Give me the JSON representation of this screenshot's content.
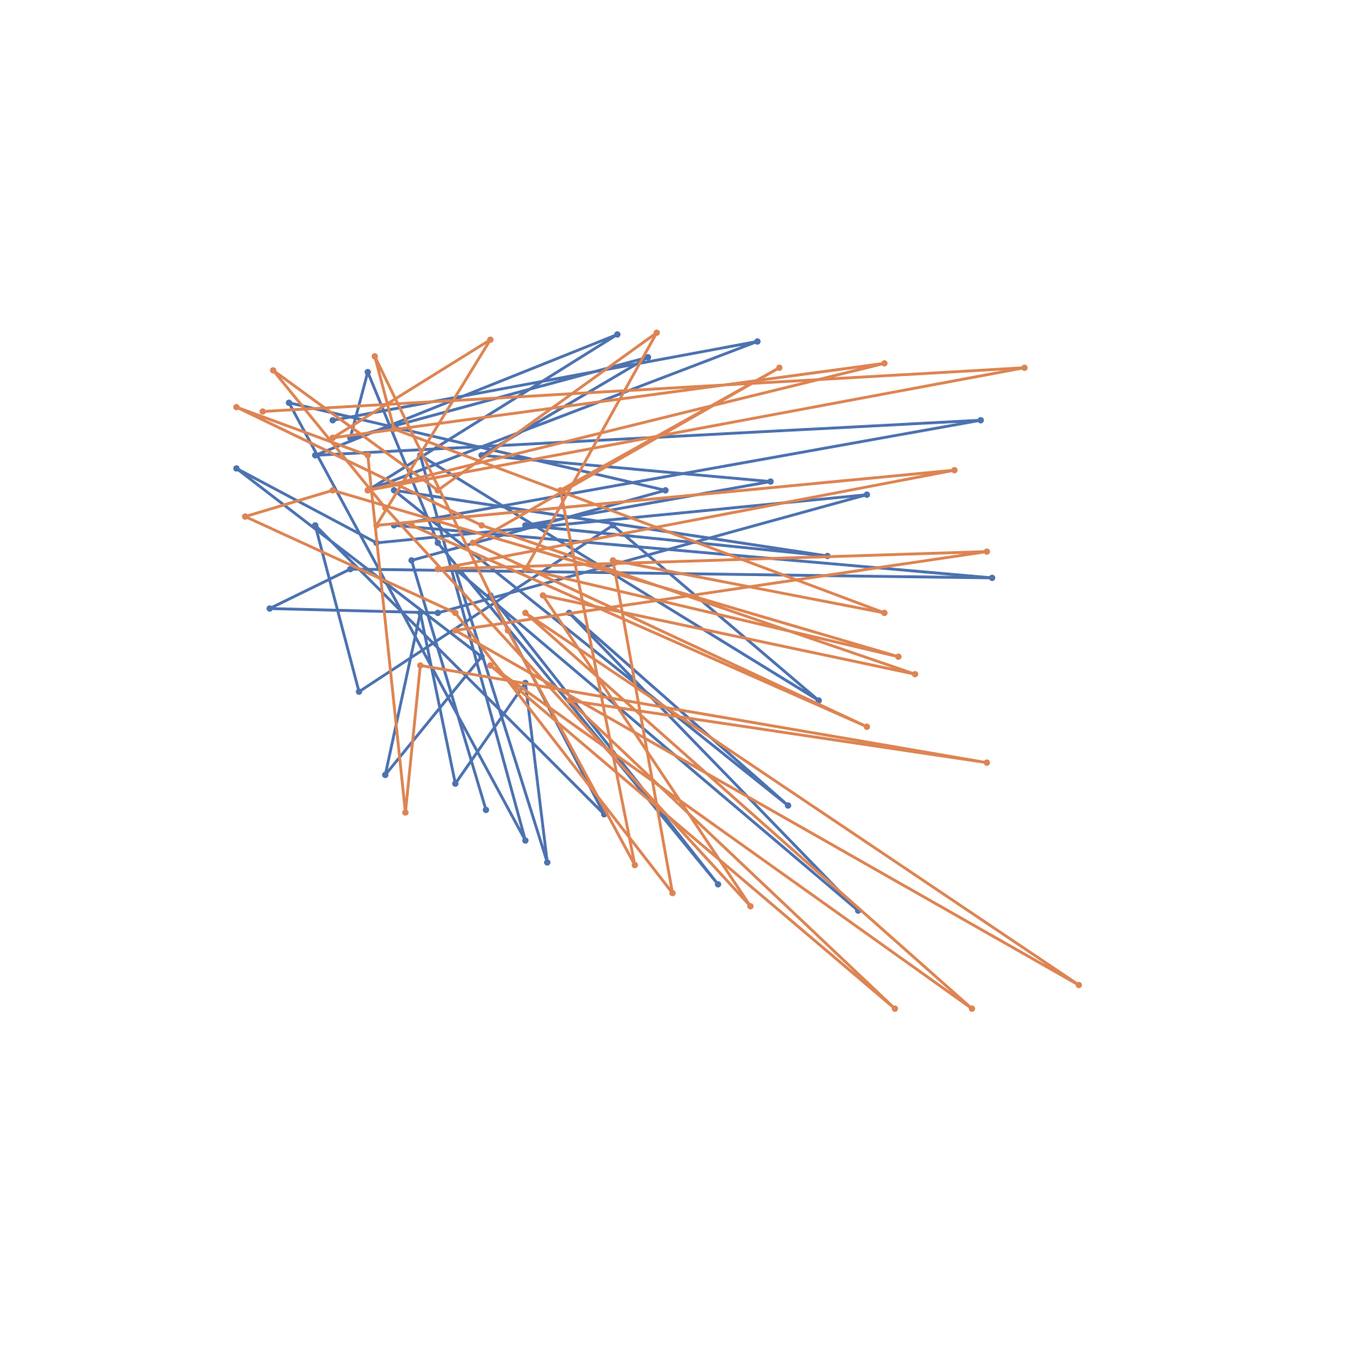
{
  "chart_data": {
    "type": "line",
    "xlim": [
      0,
      1552
    ],
    "ylim": [
      1551,
      0
    ],
    "series": [
      {
        "color": "#4c72b0",
        "x": [
          380,
          865,
          420,
          705,
          360,
          1120,
          450,
          1133,
          400,
          308,
          500,
          990,
          430,
          270,
          550,
          440,
          480,
          520,
          600,
          625,
          520,
          980,
          650,
          900,
          450,
          945,
          600,
          880,
          550,
          740,
          400,
          420,
          500,
          820,
          560,
          690,
          360,
          410,
          700,
          935,
          480,
          600,
          330,
          760,
          470,
          555
        ],
        "values": [
          480,
          390,
          560,
          382,
          520,
          480,
          600,
          660,
          650,
          695,
          700,
          565,
          620,
          535,
          750,
          885,
          700,
          895,
          780,
          985,
          650,
          1040,
          700,
          920,
          560,
          635,
          600,
          550,
          520,
          408,
          500,
          425,
          620,
          1010,
          680,
          930,
          600,
          790,
          600,
          800,
          520,
          960,
          460,
          560,
          640,
          925
        ]
      },
      {
        "color": "#dd8452",
        "x": [
          300,
          1170,
          420,
          1010,
          380,
          560,
          430,
          1090,
          500,
          1127,
          520,
          1232,
          600,
          1110,
          560,
          1022,
          650,
          1127,
          480,
          463,
          420,
          270,
          550,
          1045,
          620,
          857,
          440,
          312,
          500,
          750,
          600,
          1026,
          380,
          280,
          520,
          768,
          700,
          1010,
          450,
          428,
          580,
          725,
          640,
          890,
          540,
          990,
          470
        ],
        "values": [
          470,
          420,
          560,
          415,
          500,
          388,
          600,
          537,
          650,
          630,
          720,
          1125,
          700,
          1152,
          760,
          1152,
          800,
          871,
          760,
          928,
          520,
          465,
          600,
          770,
          680,
          1035,
          580,
          423,
          560,
          380,
          650,
          750,
          560,
          590,
          700,
          1020,
          640,
          700,
          490,
          407,
          720,
          988,
          560,
          420,
          620,
          830,
          600
        ]
      }
    ]
  }
}
